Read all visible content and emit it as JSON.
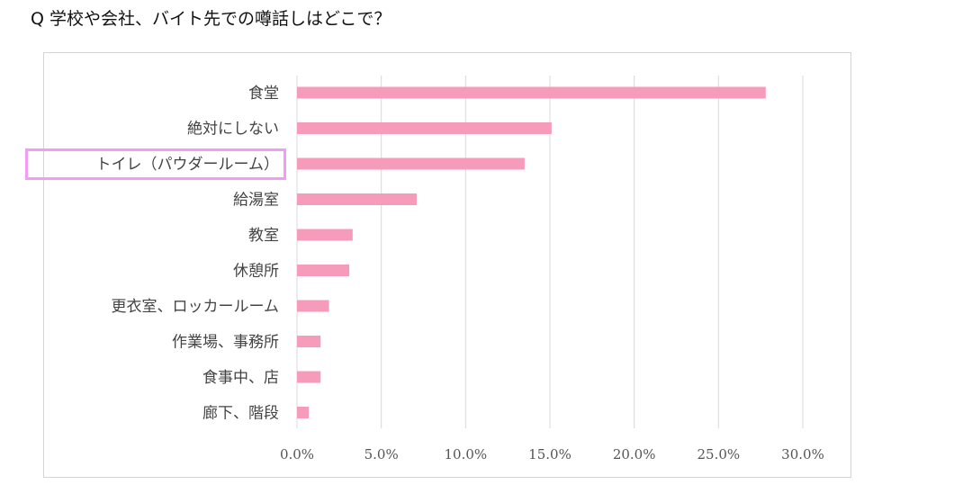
{
  "question": "Q 学校や会社、バイト先での噂話しはどこで？",
  "colors": {
    "bar": "#f79bbb",
    "grid": "#d9d9d9",
    "highlight": "#f29cf5"
  },
  "highlighted_category": "トイレ（パウダールーム）",
  "chart_data": {
    "type": "bar",
    "orientation": "horizontal",
    "categories": [
      "食堂",
      "絶対にしない",
      "トイレ（パウダールーム）",
      "給湯室",
      "教室",
      "休憩所",
      "更衣室、ロッカールーム",
      "作業場、事務所",
      "食事中、店",
      "廊下、階段"
    ],
    "values": [
      27.8,
      15.1,
      13.5,
      7.1,
      3.3,
      3.1,
      1.9,
      1.4,
      1.4,
      0.7
    ],
    "unit": "%",
    "xlim": [
      0,
      30
    ],
    "ticks": [
      0,
      5,
      10,
      15,
      20,
      25,
      30
    ],
    "tick_labels": [
      "0.0%",
      "5.0%",
      "10.0%",
      "15.0%",
      "20.0%",
      "25.0%",
      "30.0%"
    ],
    "grid": true,
    "legend": "none"
  }
}
